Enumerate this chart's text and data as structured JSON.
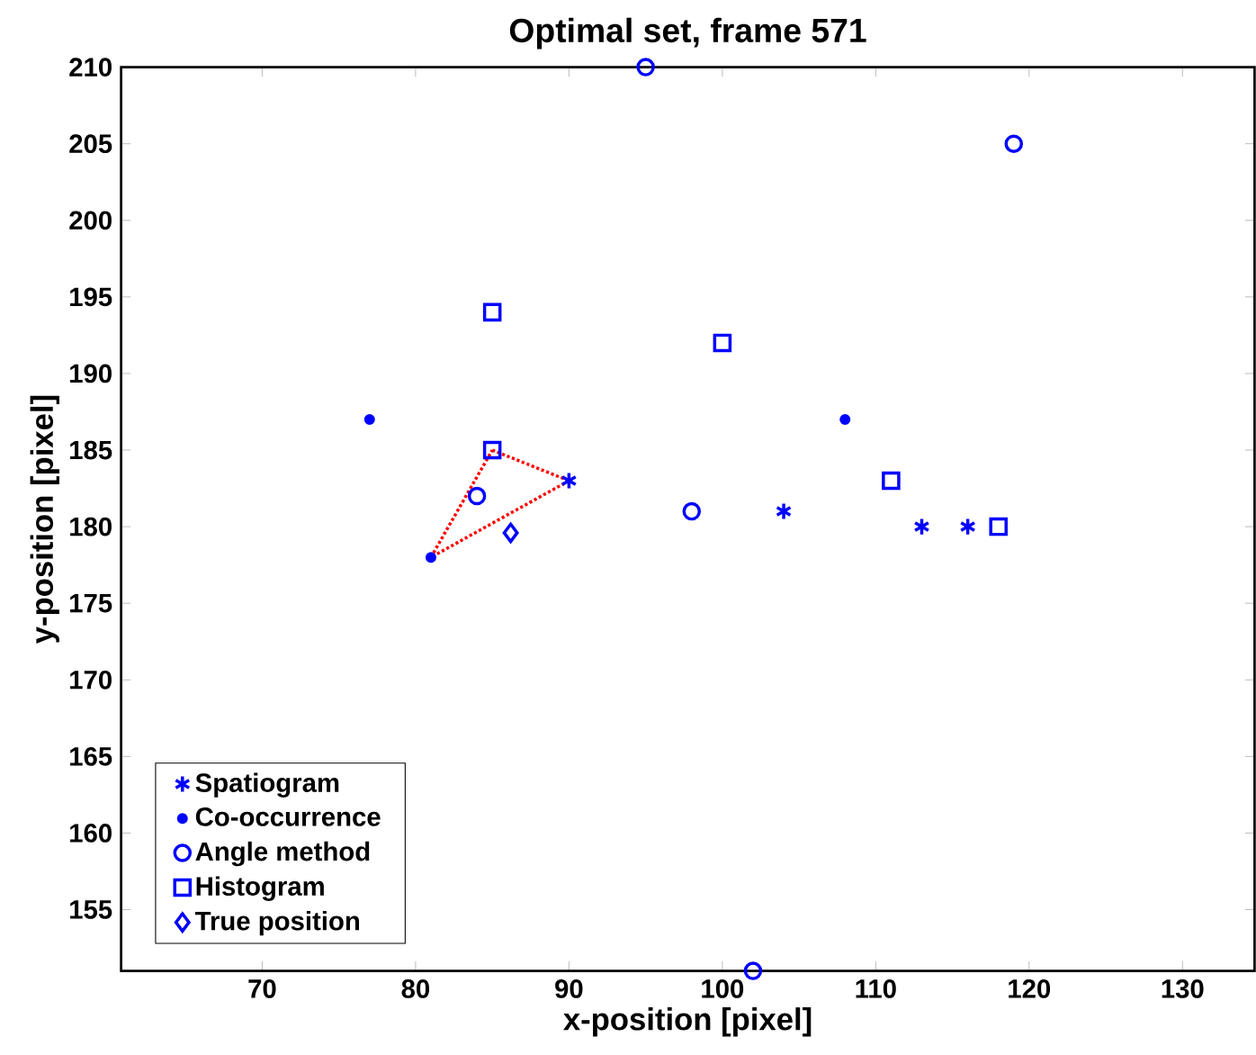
{
  "chart_data": {
    "type": "scatter",
    "title": "Optimal set, frame 571",
    "xlabel": "x-position [pixel]",
    "ylabel": "y-position [pixel]",
    "xlim": [
      60.8,
      134.7
    ],
    "ylim": [
      151,
      210
    ],
    "xticks": [
      70,
      80,
      90,
      100,
      110,
      120,
      130
    ],
    "yticks": [
      155,
      160,
      165,
      170,
      175,
      180,
      185,
      190,
      195,
      200,
      205,
      210
    ],
    "grid": false,
    "legend": "bottom left",
    "series": [
      {
        "name": "Spatiogram",
        "color": "#0000ff",
        "marker": "cross",
        "x": [
          90,
          104,
          113,
          116
        ],
        "values": [
          183,
          181,
          180,
          180
        ]
      },
      {
        "name": "Co-occurrence",
        "color": "#0000ff",
        "marker": "point",
        "x": [
          77,
          81,
          108
        ],
        "values": [
          187,
          178,
          187
        ]
      },
      {
        "name": "Angle method",
        "color": "#0000ff",
        "marker": "circle",
        "x": [
          84,
          95,
          119,
          98,
          102
        ],
        "values": [
          182,
          210,
          205,
          181,
          151
        ]
      },
      {
        "name": "Histogram",
        "color": "#0000ff",
        "marker": "square",
        "x": [
          85,
          85,
          100,
          111,
          118
        ],
        "values": [
          194,
          185,
          192,
          183,
          180
        ]
      },
      {
        "name": "True position",
        "color": "#0000ff",
        "marker": "diamond",
        "x": [
          86.2
        ],
        "values": [
          179.6
        ]
      },
      {
        "type": "line",
        "color": "#ff0000",
        "line_style": "dotted",
        "marker": "none",
        "x": [
          81,
          85
        ],
        "values": [
          178,
          185
        ]
      },
      {
        "type": "line",
        "color": "#ff0000",
        "line_style": "dotted",
        "marker": "none",
        "x": [
          85,
          90
        ],
        "values": [
          185,
          183
        ]
      },
      {
        "type": "line",
        "color": "#ff0000",
        "line_style": "dotted",
        "marker": "none",
        "x": [
          90,
          81
        ],
        "values": [
          183,
          178
        ]
      }
    ]
  }
}
